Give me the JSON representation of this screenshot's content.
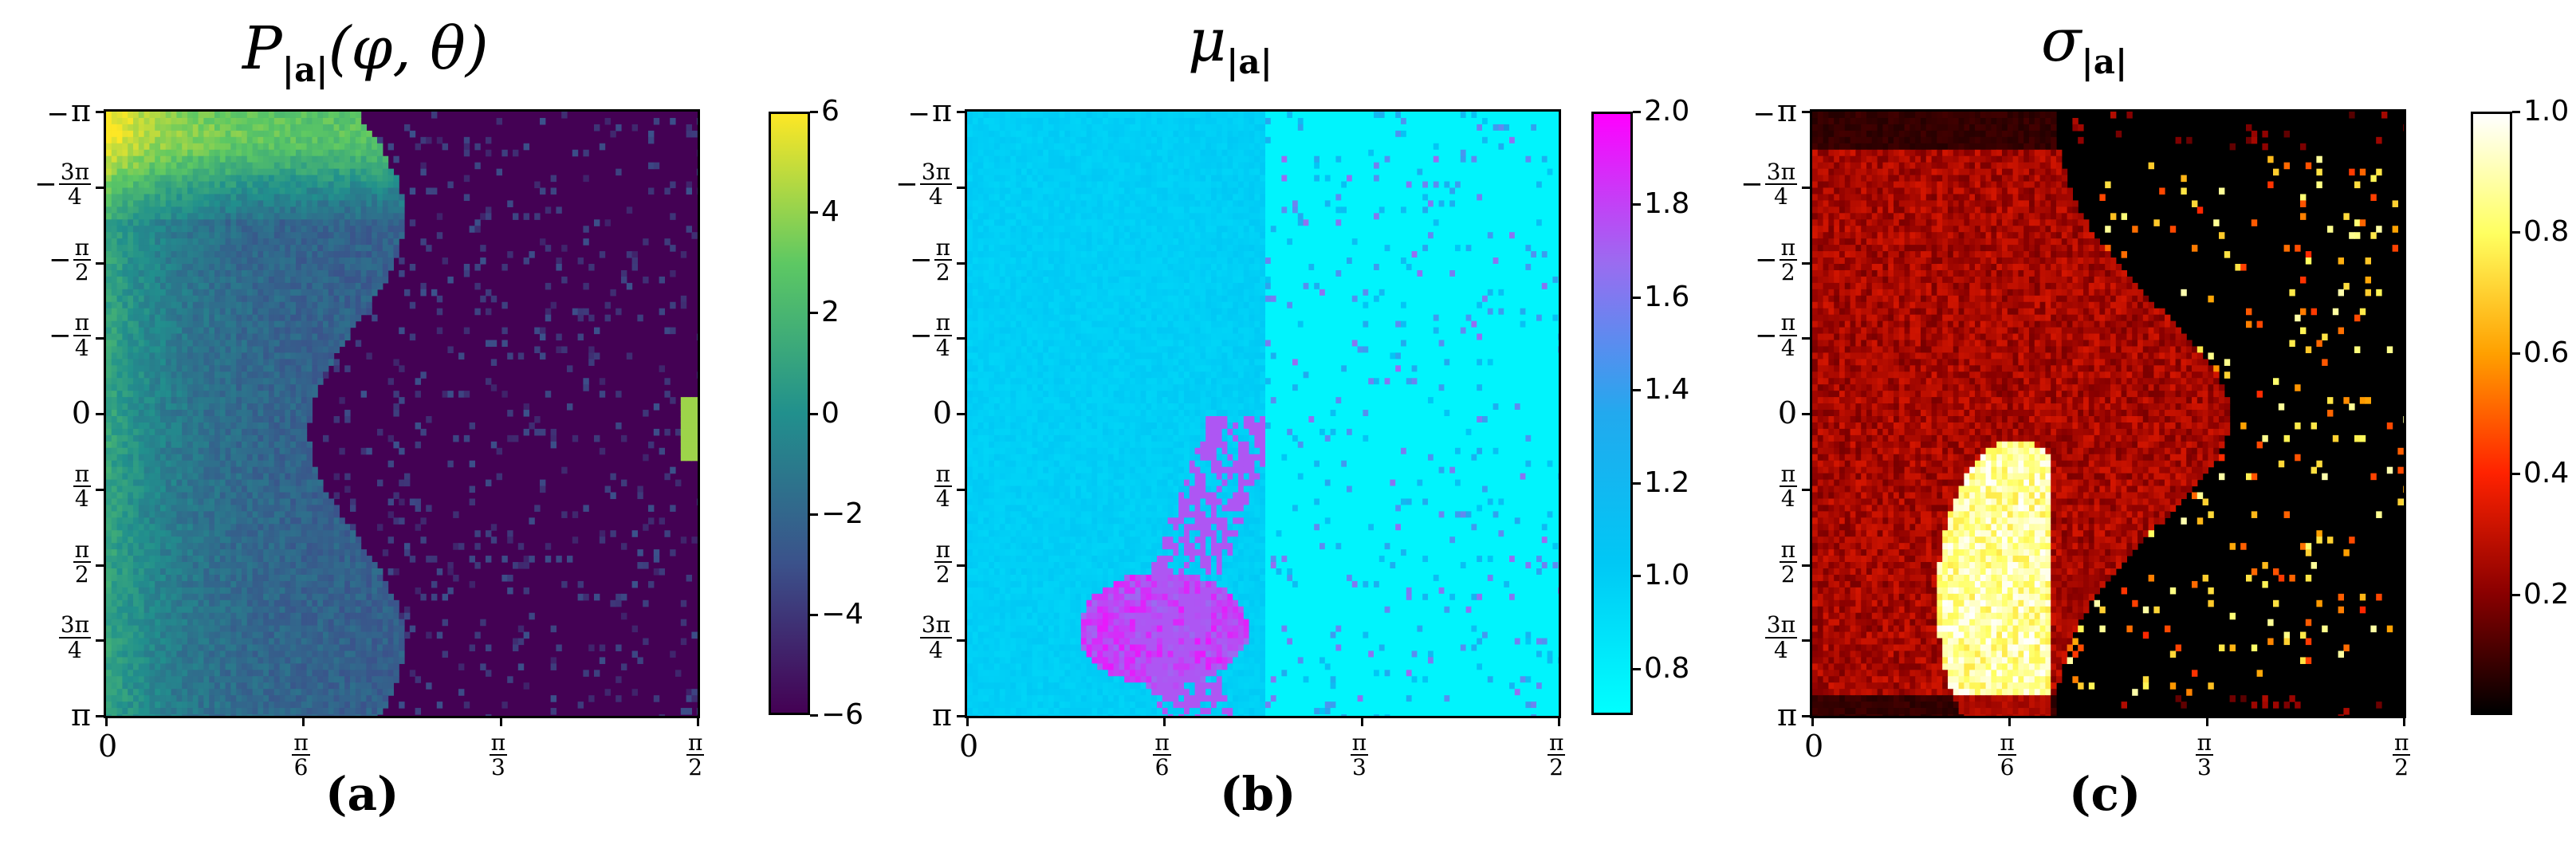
{
  "chart_data": [
    {
      "type": "heatmap",
      "title": "P_|a|(φ, θ)",
      "caption": "(a)",
      "xlim": [
        0,
        1.5708
      ],
      "ylim": [
        -3.1416,
        3.1416
      ],
      "x_ticks": [
        {
          "value": 0,
          "num": "0",
          "den": null
        },
        {
          "value": 0.5236,
          "num": "π",
          "den": "6"
        },
        {
          "value": 1.0472,
          "num": "π",
          "den": "3"
        },
        {
          "value": 1.5708,
          "num": "π",
          "den": "2"
        }
      ],
      "y_ticks": [
        {
          "value": -3.1416,
          "sign": "−",
          "num": "π",
          "den": null
        },
        {
          "value": -2.3562,
          "sign": "−",
          "num": "3π",
          "den": "4"
        },
        {
          "value": -1.5708,
          "sign": "−",
          "num": "π",
          "den": "2"
        },
        {
          "value": -0.7854,
          "sign": "−",
          "num": "π",
          "den": "4"
        },
        {
          "value": 0,
          "sign": "",
          "num": "0",
          "den": null
        },
        {
          "value": 0.7854,
          "sign": "",
          "num": "π",
          "den": "4"
        },
        {
          "value": 1.5708,
          "sign": "",
          "num": "π",
          "den": "2"
        },
        {
          "value": 2.3562,
          "sign": "",
          "num": "3π",
          "den": "4"
        },
        {
          "value": 3.1416,
          "sign": "",
          "num": "π",
          "den": null
        }
      ],
      "colorbar": {
        "range": [
          -6,
          6
        ],
        "ticks": [
          "6",
          "4",
          "2",
          "0",
          "−2",
          "−4",
          "−6"
        ],
        "tick_values": [
          6,
          4,
          2,
          0,
          -2,
          -4,
          -6
        ],
        "colormap": [
          "#440154",
          "#3b528b",
          "#21908d",
          "#5dc863",
          "#fde725"
        ]
      },
      "background_value": -6
    },
    {
      "type": "heatmap",
      "title": "μ_|a|",
      "caption": "(b)",
      "xlim": [
        0,
        1.5708
      ],
      "ylim": [
        -3.1416,
        3.1416
      ],
      "x_ticks": [
        {
          "value": 0,
          "num": "0",
          "den": null
        },
        {
          "value": 0.5236,
          "num": "π",
          "den": "6"
        },
        {
          "value": 1.0472,
          "num": "π",
          "den": "3"
        },
        {
          "value": 1.5708,
          "num": "π",
          "den": "2"
        }
      ],
      "y_ticks": [
        {
          "value": -3.1416,
          "sign": "−",
          "num": "π",
          "den": null
        },
        {
          "value": -2.3562,
          "sign": "−",
          "num": "3π",
          "den": "4"
        },
        {
          "value": -1.5708,
          "sign": "−",
          "num": "π",
          "den": "2"
        },
        {
          "value": -0.7854,
          "sign": "−",
          "num": "π",
          "den": "4"
        },
        {
          "value": 0,
          "sign": "",
          "num": "0",
          "den": null
        },
        {
          "value": 0.7854,
          "sign": "",
          "num": "π",
          "den": "4"
        },
        {
          "value": 1.5708,
          "sign": "",
          "num": "π",
          "den": "2"
        },
        {
          "value": 2.3562,
          "sign": "",
          "num": "3π",
          "den": "4"
        },
        {
          "value": 3.1416,
          "sign": "",
          "num": "π",
          "den": null
        }
      ],
      "colorbar": {
        "range": [
          0.7,
          2.0
        ],
        "ticks": [
          "2.0",
          "1.8",
          "1.6",
          "1.4",
          "1.2",
          "1.0",
          "0.8"
        ],
        "tick_values": [
          2.0,
          1.8,
          1.6,
          1.4,
          1.2,
          1.0,
          0.8
        ],
        "colormap": [
          "#00ffff",
          "#00c8f5",
          "#22a9ee",
          "#9a6cf0",
          "#ff00ff"
        ]
      },
      "background_value": 0.8
    },
    {
      "type": "heatmap",
      "title": "σ_|a|",
      "caption": "(c)",
      "xlim": [
        0,
        1.5708
      ],
      "ylim": [
        -3.1416,
        3.1416
      ],
      "x_ticks": [
        {
          "value": 0,
          "num": "0",
          "den": null
        },
        {
          "value": 0.5236,
          "num": "π",
          "den": "6"
        },
        {
          "value": 1.0472,
          "num": "π",
          "den": "3"
        },
        {
          "value": 1.5708,
          "num": "π",
          "den": "2"
        }
      ],
      "y_ticks": [
        {
          "value": -3.1416,
          "sign": "−",
          "num": "π",
          "den": null
        },
        {
          "value": -2.3562,
          "sign": "−",
          "num": "3π",
          "den": "4"
        },
        {
          "value": -1.5708,
          "sign": "−",
          "num": "π",
          "den": "2"
        },
        {
          "value": -0.7854,
          "sign": "−",
          "num": "π",
          "den": "4"
        },
        {
          "value": 0,
          "sign": "",
          "num": "0",
          "den": null
        },
        {
          "value": 0.7854,
          "sign": "",
          "num": "π",
          "den": "4"
        },
        {
          "value": 1.5708,
          "sign": "",
          "num": "π",
          "den": "2"
        },
        {
          "value": 2.3562,
          "sign": "",
          "num": "3π",
          "den": "4"
        },
        {
          "value": 3.1416,
          "sign": "",
          "num": "π",
          "den": null
        }
      ],
      "colorbar": {
        "range": [
          0.0,
          1.0
        ],
        "ticks": [
          "1.0",
          "0.8",
          "0.6",
          "0.4",
          "0.2"
        ],
        "tick_values": [
          1.0,
          0.8,
          0.6,
          0.4,
          0.2
        ],
        "colormap": [
          "#000000",
          "#8a0000",
          "#ff2200",
          "#ffa000",
          "#ffff60",
          "#ffffff"
        ]
      },
      "background_value": 0.0
    }
  ]
}
